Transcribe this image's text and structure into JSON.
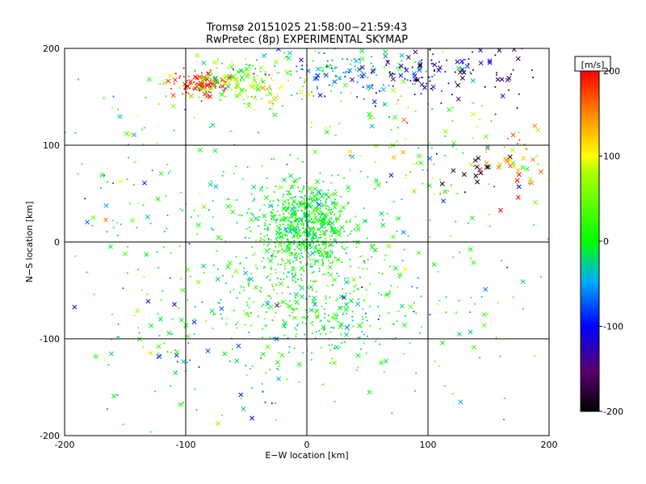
{
  "chart_data": {
    "type": "scatter",
    "title_line1": "Tromsø 20151025 21:58:00−21:59:43",
    "title_line2": "RwPretec (8p) EXPERIMENTAL SKYMAP",
    "xlabel": "E−W location [km]",
    "ylabel": "N−S location [km]",
    "xlim": [
      -200,
      200
    ],
    "ylim": [
      -200,
      200
    ],
    "xticks": [
      -200,
      -100,
      0,
      100,
      200
    ],
    "yticks": [
      -200,
      -100,
      0,
      100,
      200
    ],
    "grid": true,
    "colorbar": {
      "label": "[m/s]",
      "range": [
        -200,
        200
      ],
      "ticks": [
        200,
        100,
        0,
        -100,
        -200
      ],
      "colors": [
        "#000000",
        "#7a007a",
        "#0000ff",
        "#00ffff",
        "#00ff00",
        "#ffff00",
        "#ff0000"
      ]
    },
    "markers": [
      "dot",
      "x"
    ],
    "clusters": [
      {
        "x": 0,
        "y": 20,
        "sx": 18,
        "sy": 22,
        "n": 700,
        "v": 0,
        "vs": 20,
        "xfrac": 0.15
      },
      {
        "x": 5,
        "y": -60,
        "sx": 35,
        "sy": 35,
        "n": 380,
        "v": 10,
        "vs": 30,
        "xfrac": 0.15
      },
      {
        "x": -88,
        "y": 163,
        "sx": 12,
        "sy": 6,
        "n": 90,
        "v": 190,
        "vs": 8,
        "xfrac": 0.45
      },
      {
        "x": -55,
        "y": 165,
        "sx": 25,
        "sy": 13,
        "n": 170,
        "v": 60,
        "vs": 40,
        "xfrac": 0.4
      },
      {
        "x": 30,
        "y": 175,
        "sx": 45,
        "sy": 18,
        "n": 160,
        "v": -50,
        "vs": 35,
        "xfrac": 0.3
      },
      {
        "x": 115,
        "y": 175,
        "sx": 45,
        "sy": 15,
        "n": 110,
        "v": -140,
        "vs": 55,
        "xfrac": 0.4
      },
      {
        "x": 175,
        "y": 80,
        "sx": 18,
        "sy": 22,
        "n": 50,
        "v": 120,
        "vs": 55,
        "xfrac": 0.55
      },
      {
        "x": 80,
        "y": 110,
        "sx": 45,
        "sy": 35,
        "n": 90,
        "v": 60,
        "vs": 60,
        "xfrac": 0.3
      },
      {
        "x": -60,
        "y": 10,
        "sx": 55,
        "sy": 60,
        "n": 170,
        "v": 0,
        "vs": 30,
        "xfrac": 0.2
      },
      {
        "x": 90,
        "y": -40,
        "sx": 55,
        "sy": 70,
        "n": 160,
        "v": 0,
        "vs": 45,
        "xfrac": 0.25
      },
      {
        "x": -90,
        "y": -110,
        "sx": 45,
        "sy": 40,
        "n": 110,
        "v": -20,
        "vs": 55,
        "xfrac": 0.35
      },
      {
        "x": 130,
        "y": 70,
        "sx": 15,
        "sy": 8,
        "n": 14,
        "v": -190,
        "vs": 8,
        "xfrac": 0.8
      },
      {
        "x": -150,
        "y": 60,
        "sx": 30,
        "sy": 60,
        "n": 60,
        "v": 10,
        "vs": 60,
        "xfrac": 0.3
      }
    ]
  }
}
